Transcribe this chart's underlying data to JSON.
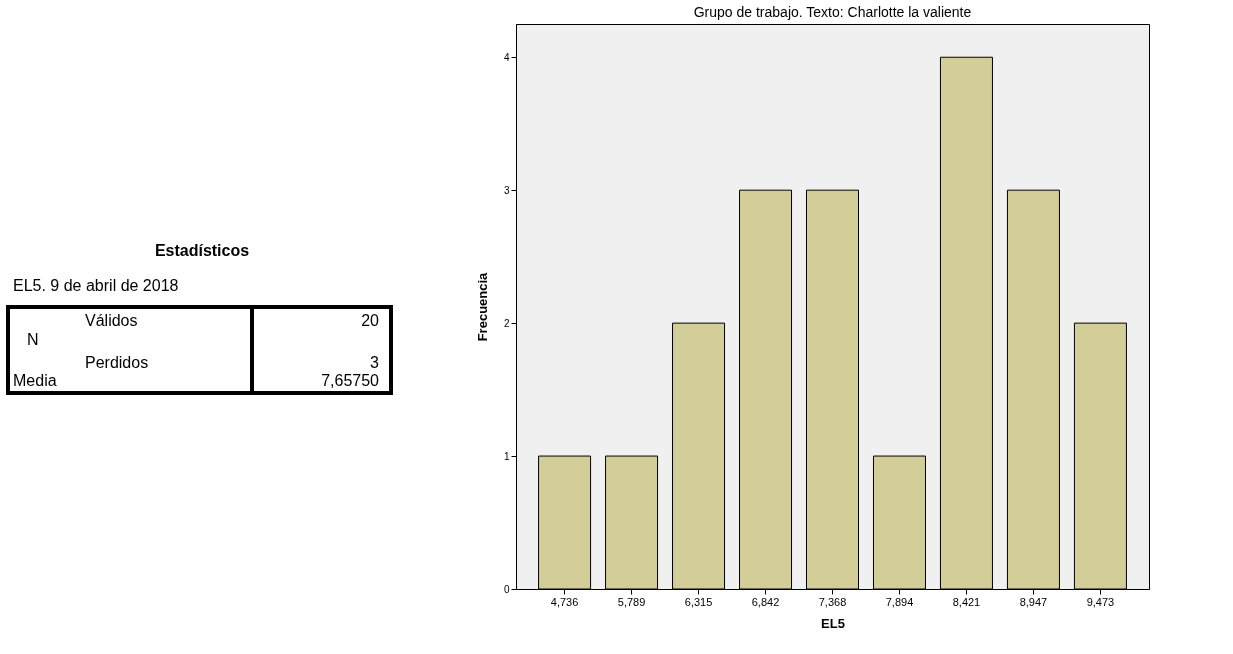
{
  "chart_data": [
    {
      "type": "other",
      "title": "Estadísticos",
      "subtitle": "EL5. 9 de abril de 2018",
      "annotations": [
        "N",
        "Válidos",
        "20",
        "Perdidos",
        "3",
        "Media",
        "7,65750"
      ]
    },
    {
      "type": "bar",
      "title": "Grupo de trabajo. Texto: Charlotte la valiente",
      "xlabel": "EL5",
      "ylabel": "Frecuencia",
      "categories": [
        "4,736",
        "5,789",
        "6,315",
        "6,842",
        "7,368",
        "7,894",
        "8,421",
        "8,947",
        "9,473"
      ],
      "values": [
        1,
        1,
        2,
        3,
        3,
        1,
        4,
        3,
        2
      ],
      "color": "#d3ce97",
      "ylim": [
        0,
        4.25
      ],
      "yticks": [
        0,
        1,
        2,
        3,
        4
      ],
      "grid": false
    }
  ]
}
